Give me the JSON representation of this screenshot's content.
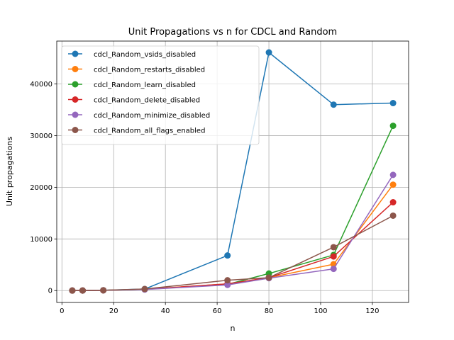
{
  "chart_data": {
    "type": "line",
    "title": "Unit Propagations vs n for CDCL and Random",
    "xlabel": "n",
    "ylabel": "Unit propagations",
    "xlim": [
      -2,
      134
    ],
    "ylim": [
      -2300,
      48300
    ],
    "xticks": [
      0,
      20,
      40,
      60,
      80,
      100,
      120
    ],
    "yticks": [
      0,
      10000,
      20000,
      30000,
      40000
    ],
    "grid": true,
    "legend_position": "upper-left",
    "x": [
      4,
      8,
      16,
      32,
      64,
      80,
      105,
      128
    ],
    "series": [
      {
        "name": "cdcl_Random_vsids_disabled",
        "color": "#1f77b4",
        "values": [
          10,
          20,
          60,
          300,
          6800,
          46100,
          36000,
          36300
        ]
      },
      {
        "name": "cdcl_Random_restarts_disabled",
        "color": "#ff7f0e",
        "values": [
          10,
          20,
          50,
          250,
          1300,
          2500,
          5100,
          20500
        ]
      },
      {
        "name": "cdcl_Random_learn_disabled",
        "color": "#2ca02c",
        "values": [
          10,
          20,
          50,
          230,
          1200,
          3300,
          6900,
          31900
        ]
      },
      {
        "name": "cdcl_Random_delete_disabled",
        "color": "#d62728",
        "values": [
          10,
          20,
          50,
          240,
          1300,
          2500,
          6600,
          17100
        ]
      },
      {
        "name": "cdcl_Random_minimize_disabled",
        "color": "#9467bd",
        "values": [
          10,
          20,
          50,
          200,
          1100,
          2400,
          4200,
          22400
        ]
      },
      {
        "name": "cdcl_Random_all_flags_enabled",
        "color": "#8c564b",
        "values": [
          10,
          20,
          50,
          300,
          2000,
          2500,
          8400,
          14500
        ]
      }
    ]
  }
}
